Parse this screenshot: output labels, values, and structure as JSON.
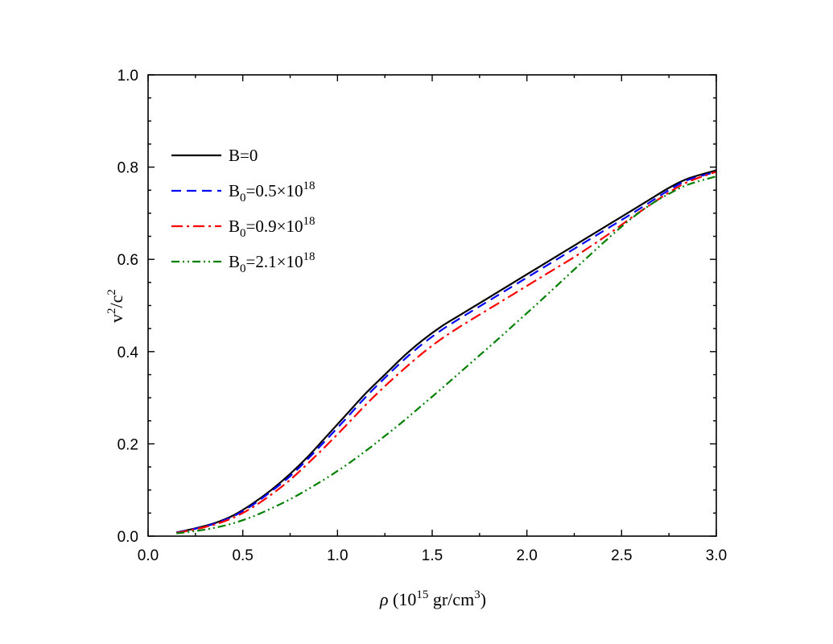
{
  "chart_data": {
    "type": "line",
    "title": "",
    "xlabel": {
      "symbol": "ρ",
      "open": " (10",
      "exp": "15",
      "mid": " gr/cm",
      "exp2": "3",
      "close": ")"
    },
    "ylabel": {
      "base1": "v",
      "exp1": "2",
      "slash": "/c",
      "exp2": "2"
    },
    "xlim": [
      0.0,
      3.0
    ],
    "ylim": [
      0.0,
      1.0
    ],
    "x_ticks": [
      "0.0",
      "0.5",
      "1.0",
      "1.5",
      "2.0",
      "2.5",
      "3.0"
    ],
    "y_ticks": [
      "0.0",
      "0.2",
      "0.4",
      "0.6",
      "0.8",
      "1.0"
    ],
    "legend_position": "upper-left",
    "series": [
      {
        "name": "B=0",
        "legend": {
          "base": "B=0",
          "sub": "",
          "rest": "",
          "sup": ""
        },
        "color": "#000000",
        "dash": "solid",
        "x": [
          0.15,
          0.25,
          0.35,
          0.45,
          0.55,
          0.65,
          0.75,
          0.85,
          0.95,
          1.05,
          1.15,
          1.25,
          1.35,
          1.45,
          1.55,
          1.65,
          1.75,
          1.85,
          1.95,
          2.05,
          2.15,
          2.25,
          2.35,
          2.45,
          2.55,
          2.65,
          2.75,
          2.85,
          3.0
        ],
        "y": [
          0.008,
          0.017,
          0.028,
          0.045,
          0.07,
          0.1,
          0.135,
          0.175,
          0.22,
          0.265,
          0.31,
          0.35,
          0.39,
          0.425,
          0.455,
          0.48,
          0.505,
          0.53,
          0.555,
          0.58,
          0.605,
          0.63,
          0.655,
          0.68,
          0.705,
          0.73,
          0.755,
          0.775,
          0.793
        ]
      },
      {
        "name": "B0=0.5×10^18",
        "legend": {
          "base": "B",
          "sub": "0",
          "rest": "=0.5×10",
          "sup": "18"
        },
        "color": "#0000ff",
        "dash": "dash",
        "x": [
          0.15,
          0.25,
          0.35,
          0.45,
          0.55,
          0.65,
          0.75,
          0.85,
          0.95,
          1.05,
          1.15,
          1.25,
          1.35,
          1.45,
          1.55,
          1.65,
          1.75,
          1.85,
          1.95,
          2.05,
          2.15,
          2.25,
          2.35,
          2.45,
          2.55,
          2.65,
          2.75,
          2.85,
          3.0
        ],
        "y": [
          0.008,
          0.016,
          0.027,
          0.043,
          0.067,
          0.097,
          0.13,
          0.17,
          0.213,
          0.257,
          0.302,
          0.343,
          0.382,
          0.417,
          0.447,
          0.473,
          0.498,
          0.523,
          0.548,
          0.573,
          0.598,
          0.623,
          0.648,
          0.673,
          0.698,
          0.724,
          0.75,
          0.772,
          0.79
        ]
      },
      {
        "name": "B0=0.9×10^18",
        "legend": {
          "base": "B",
          "sub": "0",
          "rest": "=0.9×10",
          "sup": "18"
        },
        "color": "#ff0000",
        "dash": "dashdot",
        "x": [
          0.15,
          0.25,
          0.35,
          0.45,
          0.55,
          0.65,
          0.75,
          0.85,
          0.95,
          1.05,
          1.15,
          1.25,
          1.35,
          1.45,
          1.55,
          1.65,
          1.75,
          1.85,
          1.95,
          2.05,
          2.15,
          2.25,
          2.35,
          2.45,
          2.55,
          2.65,
          2.75,
          2.85,
          3.0
        ],
        "y": [
          0.007,
          0.015,
          0.025,
          0.04,
          0.062,
          0.09,
          0.122,
          0.16,
          0.2,
          0.242,
          0.285,
          0.325,
          0.362,
          0.397,
          0.428,
          0.455,
          0.48,
          0.505,
          0.53,
          0.555,
          0.58,
          0.605,
          0.632,
          0.66,
          0.69,
          0.718,
          0.745,
          0.768,
          0.79
        ]
      },
      {
        "name": "B0=2.1×10^18",
        "legend": {
          "base": "B",
          "sub": "0",
          "rest": "=2.1×10",
          "sup": "18"
        },
        "color": "#008000",
        "dash": "dashdotdot",
        "x": [
          0.15,
          0.25,
          0.35,
          0.45,
          0.55,
          0.65,
          0.75,
          0.85,
          0.95,
          1.05,
          1.15,
          1.25,
          1.35,
          1.45,
          1.55,
          1.65,
          1.75,
          1.85,
          1.95,
          2.05,
          2.15,
          2.25,
          2.35,
          2.45,
          2.55,
          2.65,
          2.75,
          2.85,
          3.0
        ],
        "y": [
          0.006,
          0.011,
          0.018,
          0.028,
          0.042,
          0.06,
          0.08,
          0.103,
          0.128,
          0.155,
          0.185,
          0.217,
          0.25,
          0.285,
          0.32,
          0.356,
          0.392,
          0.428,
          0.465,
          0.502,
          0.54,
          0.578,
          0.616,
          0.653,
          0.688,
          0.718,
          0.742,
          0.762,
          0.78
        ]
      }
    ]
  }
}
